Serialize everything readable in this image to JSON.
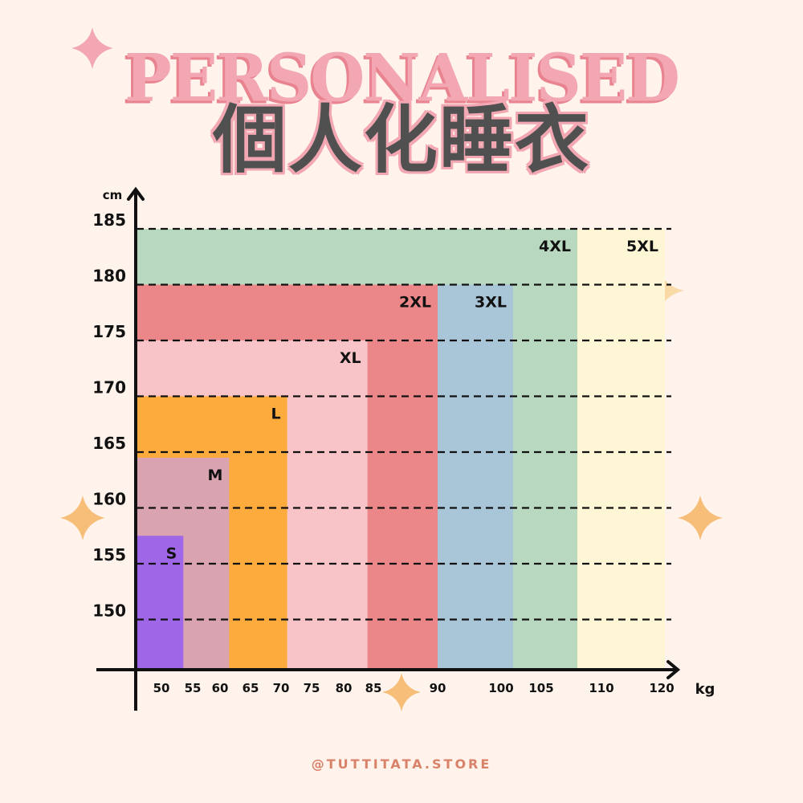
{
  "title_en": "PERSONALISED",
  "title_zh": "個人化睡衣",
  "footer": "@TUTTITATA.STORE",
  "chart_data": {
    "type": "bar",
    "title": "個人化睡衣",
    "xlabel": "kg",
    "ylabel": "cm",
    "x_ticks": [
      50,
      55,
      60,
      65,
      70,
      75,
      80,
      85,
      90,
      100,
      105,
      110,
      120
    ],
    "y_ticks": [
      150,
      155,
      160,
      165,
      170,
      175,
      180,
      185
    ],
    "grid": "dashed horizontal at y ticks",
    "series": [
      {
        "name": "S",
        "max_weight": 53.5,
        "max_height": 157.5,
        "color": "#a066e8"
      },
      {
        "name": "M",
        "max_weight": 61.5,
        "max_height": 164.5,
        "color": "#daa3b0"
      },
      {
        "name": "L",
        "max_weight": 71,
        "max_height": 170,
        "color": "#fdab3d"
      },
      {
        "name": "XL",
        "max_weight": 84,
        "max_height": 175,
        "color": "#f9c4c8"
      },
      {
        "name": "2XL",
        "max_weight": 90,
        "max_height": 180,
        "color": "#ec8789"
      },
      {
        "name": "3XL",
        "max_weight": 101.5,
        "max_height": 180,
        "color": "#a9c5d8"
      },
      {
        "name": "4XL",
        "max_weight": 108,
        "max_height": 185,
        "color": "#b8d9bf"
      },
      {
        "name": "5XL",
        "max_weight": 120.5,
        "max_height": 185,
        "color": "#fff6d6"
      }
    ]
  }
}
